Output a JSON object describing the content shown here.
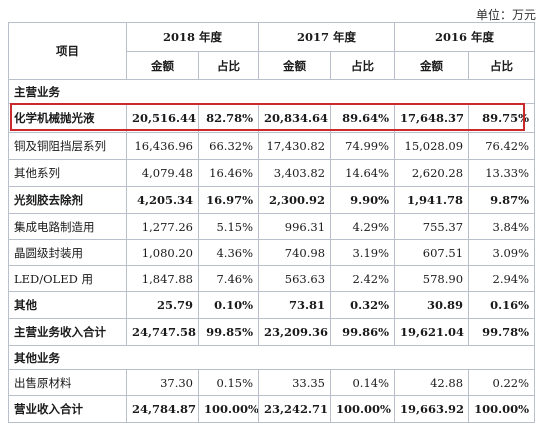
{
  "unit_label": "单位：万元",
  "header": {
    "item": "项目",
    "years": [
      "2018 年度",
      "2017 年度",
      "2016 年度"
    ],
    "amount": "金额",
    "ratio": "占比"
  },
  "sections": {
    "main_business": "主营业务",
    "other_business": "其他业务"
  },
  "rows_main": [
    {
      "label": "化学机械抛光液",
      "v": [
        "20,516.44",
        "82.78%",
        "20,834.64",
        "89.64%",
        "17,648.37",
        "89.75%"
      ],
      "bold": true
    },
    {
      "label": "铜及铜阻挡层系列",
      "v": [
        "16,436.96",
        "66.32%",
        "17,430.82",
        "74.99%",
        "15,028.09",
        "76.42%"
      ],
      "bold": false
    },
    {
      "label": "其他系列",
      "v": [
        "4,079.48",
        "16.46%",
        "3,403.82",
        "14.64%",
        "2,620.28",
        "13.33%"
      ],
      "bold": false
    },
    {
      "label": "光刻胶去除剂",
      "v": [
        "4,205.34",
        "16.97%",
        "2,300.92",
        "9.90%",
        "1,941.78",
        "9.87%"
      ],
      "bold": true
    },
    {
      "label": "集成电路制造用",
      "v": [
        "1,277.26",
        "5.15%",
        "996.31",
        "4.29%",
        "755.37",
        "3.84%"
      ],
      "bold": false
    },
    {
      "label": "晶圆级封装用",
      "v": [
        "1,080.20",
        "4.36%",
        "740.98",
        "3.19%",
        "607.51",
        "3.09%"
      ],
      "bold": false
    },
    {
      "label": "LED/OLED 用",
      "v": [
        "1,847.88",
        "7.46%",
        "563.63",
        "2.42%",
        "578.90",
        "2.94%"
      ],
      "bold": false
    },
    {
      "label": "其他",
      "v": [
        "25.79",
        "0.10%",
        "73.81",
        "0.32%",
        "30.89",
        "0.16%"
      ],
      "bold": true
    },
    {
      "label": "主营业务收入合计",
      "v": [
        "24,747.58",
        "99.85%",
        "23,209.36",
        "99.86%",
        "19,621.04",
        "99.78%"
      ],
      "bold": true
    }
  ],
  "rows_other": [
    {
      "label": "出售原材料",
      "v": [
        "37.30",
        "0.15%",
        "33.35",
        "0.14%",
        "42.88",
        "0.22%"
      ],
      "bold": false
    },
    {
      "label": "营业收入合计",
      "v": [
        "24,784.87",
        "100.00%",
        "23,242.71",
        "100.00%",
        "19,663.92",
        "100.00%"
      ],
      "bold": true
    }
  ]
}
